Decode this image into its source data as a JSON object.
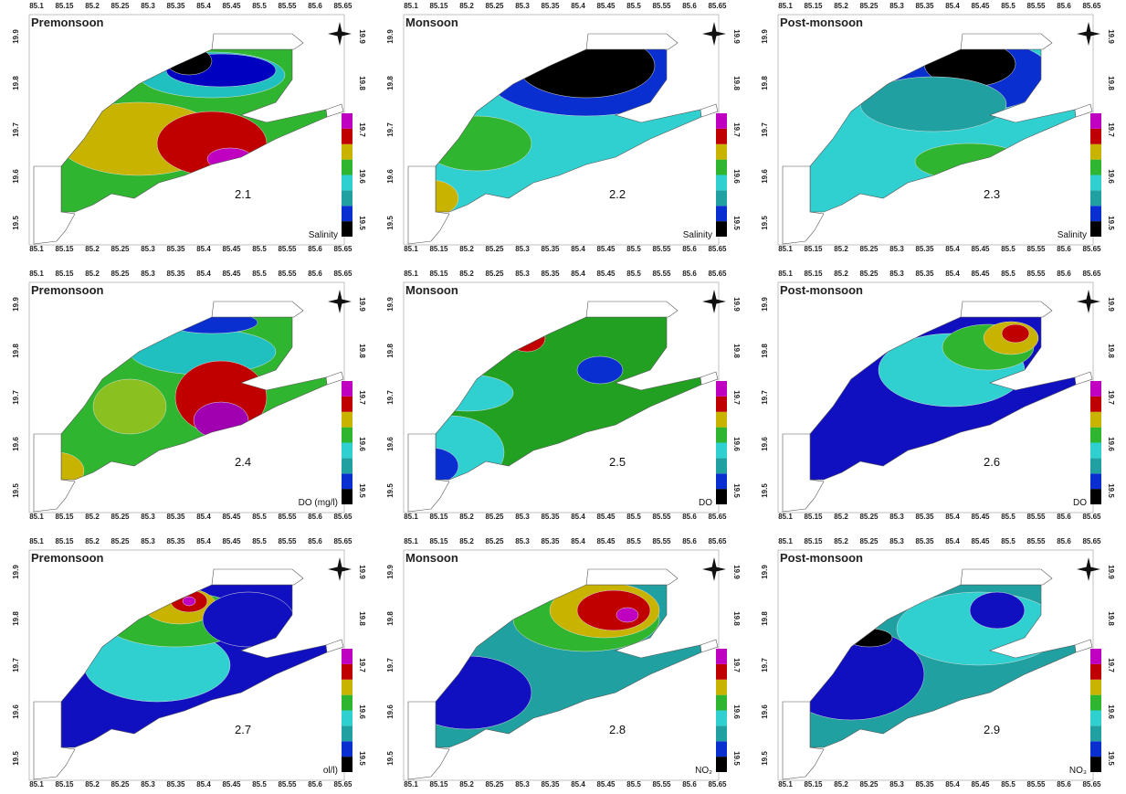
{
  "x_ticks": [
    "85.1",
    "85.15",
    "85.2",
    "85.25",
    "85.3",
    "85.35",
    "85.4",
    "85.45",
    "85.5",
    "85.55",
    "85.6",
    "85.65"
  ],
  "y_ticks": [
    "19.9",
    "19.8",
    "19.7",
    "19.6",
    "19.5"
  ],
  "panels": [
    {
      "title": "Premonsoon",
      "number": "2.1",
      "variable": "Salinity"
    },
    {
      "title": "Monsoon",
      "number": "2.2",
      "variable": "Salinity"
    },
    {
      "title": "Post-monsoon",
      "number": "2.3",
      "variable": "Salinity"
    },
    {
      "title": "Premonsoon",
      "number": "2.4",
      "variable": "DO (mg/l)"
    },
    {
      "title": "Monsoon",
      "number": "2.5",
      "variable": "DO"
    },
    {
      "title": "Post-monsoon",
      "number": "2.6",
      "variable": "DO"
    },
    {
      "title": "Premonsoon",
      "number": "2.7",
      "variable": "ol/l)"
    },
    {
      "title": "Monsoon",
      "number": "2.8",
      "variable": "NO₂"
    },
    {
      "title": "Post-monsoon",
      "number": "2.9",
      "variable": "NO₃"
    }
  ]
}
